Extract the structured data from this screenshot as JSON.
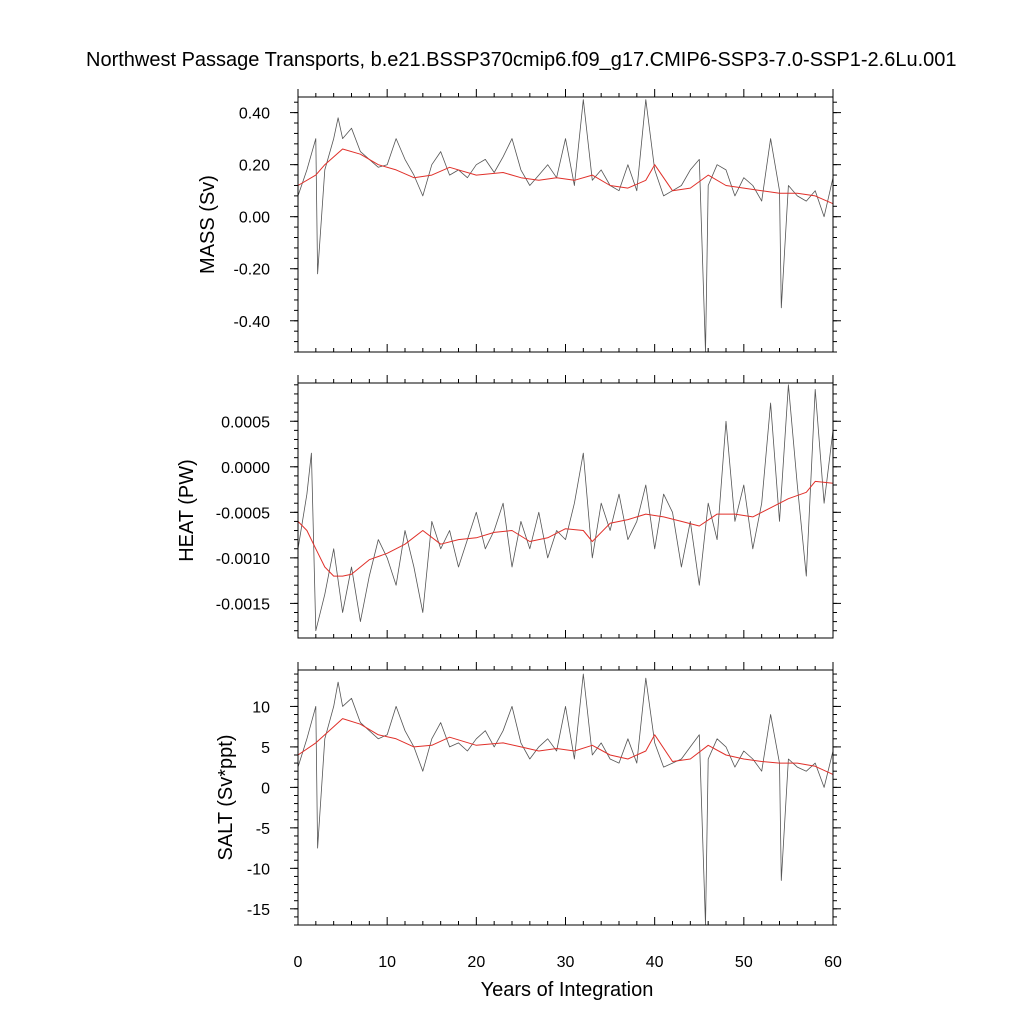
{
  "chart_data": {
    "title": "Northwest Passage Transports, b.e21.BSSP370cmip6.f09_g17.CMIP6-SSP3-7.0-SSP1-2.6Lu.001",
    "xlabel": "Years of Integration",
    "xlim": [
      0,
      60
    ],
    "xticks": [
      0,
      10,
      20,
      30,
      40,
      50,
      60
    ],
    "xtick_labels": [
      "0",
      "10",
      "20",
      "30",
      "40",
      "50",
      "60"
    ],
    "panels": [
      {
        "type": "line",
        "ylabel": "MASS (Sv)",
        "ylim": [
          -0.52,
          0.46
        ],
        "yticks": [
          -0.4,
          -0.2,
          0.0,
          0.2,
          0.4
        ],
        "ytick_labels": [
          "-0.40",
          "-0.20",
          "0.00",
          "0.20",
          "0.40"
        ],
        "series": [
          {
            "color": "#555555",
            "x": [
              0,
              1,
              2,
              2.2,
              3,
              4,
              4.5,
              5,
              6,
              7,
              8,
              9,
              10,
              11,
              12,
              13,
              14,
              15,
              16,
              17,
              18,
              19,
              20,
              21,
              22,
              23,
              24,
              25,
              26,
              27,
              28,
              29,
              30,
              31,
              32,
              33,
              34,
              35,
              36,
              37,
              38,
              39,
              40,
              41,
              42,
              43,
              44,
              45,
              45.7,
              46,
              47,
              48,
              49,
              50,
              51,
              52,
              53,
              54,
              54.2,
              55,
              56,
              57,
              58,
              59,
              60
            ],
            "values": [
              0.08,
              0.18,
              0.3,
              -0.22,
              0.18,
              0.3,
              0.38,
              0.3,
              0.34,
              0.25,
              0.22,
              0.19,
              0.2,
              0.3,
              0.22,
              0.16,
              0.08,
              0.2,
              0.25,
              0.16,
              0.18,
              0.15,
              0.2,
              0.22,
              0.17,
              0.23,
              0.3,
              0.18,
              0.12,
              0.16,
              0.2,
              0.15,
              0.3,
              0.12,
              0.45,
              0.14,
              0.18,
              0.12,
              0.1,
              0.2,
              0.1,
              0.45,
              0.18,
              0.08,
              0.1,
              0.12,
              0.18,
              0.22,
              -0.52,
              0.12,
              0.2,
              0.18,
              0.08,
              0.15,
              0.12,
              0.06,
              0.3,
              0.1,
              -0.35,
              0.12,
              0.08,
              0.06,
              0.1,
              0.0,
              0.15
            ]
          },
          {
            "color": "#e0302a",
            "x": [
              0,
              2,
              3,
              5,
              7,
              9,
              11,
              13,
              15,
              17,
              20,
              23,
              25,
              27,
              29,
              31,
              33,
              35,
              37,
              39,
              40,
              42,
              44,
              46,
              48,
              50,
              52,
              54,
              56,
              58,
              60
            ],
            "values": [
              0.12,
              0.16,
              0.2,
              0.26,
              0.24,
              0.2,
              0.18,
              0.15,
              0.16,
              0.19,
              0.16,
              0.17,
              0.15,
              0.14,
              0.15,
              0.14,
              0.16,
              0.12,
              0.11,
              0.14,
              0.2,
              0.1,
              0.11,
              0.16,
              0.12,
              0.11,
              0.1,
              0.09,
              0.09,
              0.08,
              0.05
            ]
          }
        ]
      },
      {
        "type": "line",
        "ylabel": "HEAT (PW)",
        "ylim": [
          -0.00188,
          0.00092
        ],
        "yticks": [
          -0.0015,
          -0.001,
          -0.0005,
          0.0,
          0.0005
        ],
        "ytick_labels": [
          "-0.0015",
          "-0.0010",
          "-0.0005",
          "0.0000",
          "0.0005"
        ],
        "series": [
          {
            "color": "#555555",
            "x": [
              0,
              1,
              1.5,
              2,
              3,
              4,
              5,
              6,
              7,
              8,
              9,
              10,
              11,
              12,
              13,
              14,
              15,
              16,
              17,
              18,
              19,
              20,
              21,
              22,
              23,
              24,
              25,
              26,
              27,
              28,
              29,
              30,
              31,
              32,
              33,
              34,
              35,
              36,
              37,
              38,
              39,
              40,
              41,
              42,
              43,
              44,
              45,
              46,
              47,
              48,
              49,
              50,
              51,
              52,
              53,
              54,
              55,
              56,
              57,
              58,
              59,
              60
            ],
            "values": [
              -0.0009,
              -0.0003,
              0.00015,
              -0.0018,
              -0.0014,
              -0.0009,
              -0.0016,
              -0.0011,
              -0.0017,
              -0.0012,
              -0.0008,
              -0.001,
              -0.0013,
              -0.0007,
              -0.0011,
              -0.0016,
              -0.0006,
              -0.0009,
              -0.0007,
              -0.0011,
              -0.0008,
              -0.0005,
              -0.0009,
              -0.0007,
              -0.0004,
              -0.0011,
              -0.0006,
              -0.0009,
              -0.0005,
              -0.001,
              -0.0007,
              -0.0008,
              -0.0004,
              0.00015,
              -0.001,
              -0.0004,
              -0.0007,
              -0.0003,
              -0.0008,
              -0.0006,
              -0.0002,
              -0.0009,
              -0.0003,
              -0.0005,
              -0.0011,
              -0.0006,
              -0.0013,
              -0.0004,
              -0.0008,
              0.0005,
              -0.0006,
              -0.0002,
              -0.0009,
              -0.0004,
              0.0007,
              -0.0006,
              0.0009,
              -0.0002,
              -0.0012,
              0.00085,
              -0.0004,
              0.0004
            ]
          },
          {
            "color": "#e0302a",
            "x": [
              0,
              1,
              2,
              3,
              4,
              5,
              6,
              7,
              8,
              10,
              12,
              14,
              16,
              18,
              20,
              22,
              24,
              26,
              28,
              30,
              32,
              33,
              35,
              37,
              39,
              41,
              43,
              45,
              47,
              49,
              51,
              53,
              55,
              57,
              58,
              60
            ],
            "values": [
              -0.0006,
              -0.0007,
              -0.0009,
              -0.0011,
              -0.0012,
              -0.0012,
              -0.00118,
              -0.0011,
              -0.00102,
              -0.00095,
              -0.00085,
              -0.0007,
              -0.00085,
              -0.0008,
              -0.00078,
              -0.00072,
              -0.0007,
              -0.00082,
              -0.00078,
              -0.00068,
              -0.0007,
              -0.00082,
              -0.00062,
              -0.00058,
              -0.00052,
              -0.00055,
              -0.0006,
              -0.00065,
              -0.00052,
              -0.00052,
              -0.00055,
              -0.00045,
              -0.00035,
              -0.00028,
              -0.00016,
              -0.00018
            ]
          }
        ]
      },
      {
        "type": "line",
        "ylabel": "SALT (Sv*ppt)",
        "ylim": [
          -17,
          14.5
        ],
        "yticks": [
          -15,
          -10,
          -5,
          0,
          5,
          10
        ],
        "ytick_labels": [
          "-15",
          "-10",
          "-5",
          "0",
          "5",
          "10"
        ],
        "series": [
          {
            "color": "#555555",
            "x": [
              0,
              1,
              2,
              2.2,
              3,
              4,
              4.5,
              5,
              6,
              7,
              8,
              9,
              10,
              11,
              12,
              13,
              14,
              15,
              16,
              17,
              18,
              19,
              20,
              21,
              22,
              23,
              24,
              25,
              26,
              27,
              28,
              29,
              30,
              31,
              32,
              33,
              34,
              35,
              36,
              37,
              38,
              39,
              40,
              41,
              42,
              43,
              44,
              45,
              45.7,
              46,
              47,
              48,
              49,
              50,
              51,
              52,
              53,
              54,
              54.2,
              55,
              56,
              57,
              58,
              59,
              60
            ],
            "values": [
              2.5,
              6,
              10,
              -7.5,
              6,
              10,
              13,
              10,
              11,
              8,
              7,
              6,
              6.5,
              10,
              7,
              5,
              2,
              6,
              8,
              5,
              5.5,
              4.5,
              6,
              7,
              5,
              7,
              10,
              5.5,
              3.5,
              5,
              6,
              4.5,
              10,
              3.5,
              14,
              4,
              5.5,
              3.5,
              3,
              6,
              3,
              13.5,
              5.5,
              2.5,
              3,
              3.5,
              5,
              6.5,
              -17,
              3.5,
              6,
              5,
              2.5,
              4.5,
              3.5,
              2,
              9,
              3,
              -11.5,
              3.5,
              2.5,
              2,
              3,
              0,
              4.5
            ]
          },
          {
            "color": "#e0302a",
            "x": [
              0,
              2,
              3,
              5,
              7,
              9,
              11,
              13,
              15,
              17,
              20,
              23,
              25,
              27,
              29,
              31,
              33,
              35,
              37,
              39,
              40,
              42,
              44,
              46,
              48,
              50,
              52,
              54,
              56,
              58,
              60
            ],
            "values": [
              4,
              5.5,
              6.5,
              8.5,
              7.8,
              6.5,
              6,
              5,
              5.2,
              6.2,
              5.2,
              5.5,
              5,
              4.5,
              4.8,
              4.5,
              5.2,
              4,
              3.5,
              4.5,
              6.5,
              3.2,
              3.5,
              5.2,
              4,
              3.5,
              3.2,
              3,
              3,
              2.6,
              1.6
            ]
          }
        ]
      }
    ]
  }
}
